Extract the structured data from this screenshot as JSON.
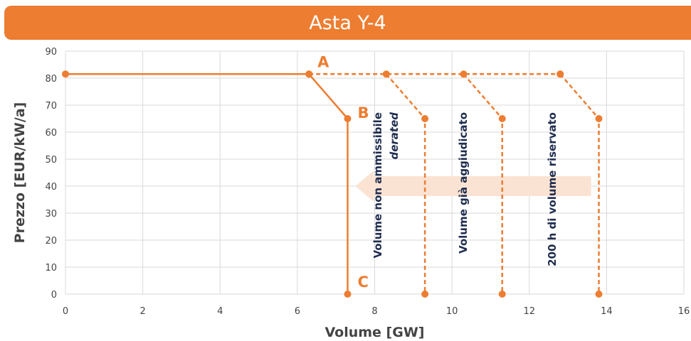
{
  "chart_data": {
    "type": "line",
    "title": "Asta Y-4",
    "xlabel": "Volume [GW]",
    "ylabel": "Prezzo [EUR/kW/a]",
    "xlim": [
      0,
      16
    ],
    "ylim": [
      0,
      90
    ],
    "xticks": [
      0,
      2,
      4,
      6,
      8,
      10,
      12,
      14,
      16
    ],
    "yticks": [
      0,
      10,
      20,
      30,
      40,
      50,
      60,
      70,
      80,
      90
    ],
    "grid": true,
    "series": [
      {
        "style": "solid",
        "points": [
          [
            0,
            81.5
          ],
          [
            6.3,
            81.5
          ],
          [
            7.3,
            65
          ],
          [
            7.3,
            0
          ]
        ]
      },
      {
        "style": "dashed",
        "points": [
          [
            6.3,
            81.5
          ],
          [
            12.8,
            81.5
          ]
        ]
      },
      {
        "style": "dashed",
        "points": [
          [
            8.3,
            81.5
          ],
          [
            9.3,
            65
          ],
          [
            9.3,
            0
          ]
        ]
      },
      {
        "style": "dashed",
        "points": [
          [
            10.3,
            81.5
          ],
          [
            11.3,
            65
          ],
          [
            11.3,
            0
          ]
        ]
      },
      {
        "style": "dashed",
        "points": [
          [
            12.8,
            81.5
          ],
          [
            13.8,
            65
          ],
          [
            13.8,
            0
          ]
        ]
      }
    ],
    "point_labels": [
      {
        "text": "A",
        "x": 6.3,
        "y": 81.5
      },
      {
        "text": "B",
        "x": 7.3,
        "y": 65
      },
      {
        "text": "C",
        "x": 7.3,
        "y": 0
      }
    ],
    "annotations": [
      {
        "lines": [
          "Volume non ammissibile",
          "derated"
        ],
        "x": 7.3
      },
      {
        "lines": [
          "Volume già aggiudicato"
        ],
        "x": 9.3
      },
      {
        "lines": [
          "200 h di volume riservato"
        ],
        "x": 11.3
      }
    ],
    "arrow": {
      "from_x": 13.6,
      "to_x": 7.5,
      "y": 40
    },
    "colors": {
      "line": "#ed7d31",
      "title_bar": "#ed7d31",
      "arrow_fill": "#fbe3d3",
      "annotation": "#1f2d4e",
      "grid": "#d9d9d9"
    }
  }
}
